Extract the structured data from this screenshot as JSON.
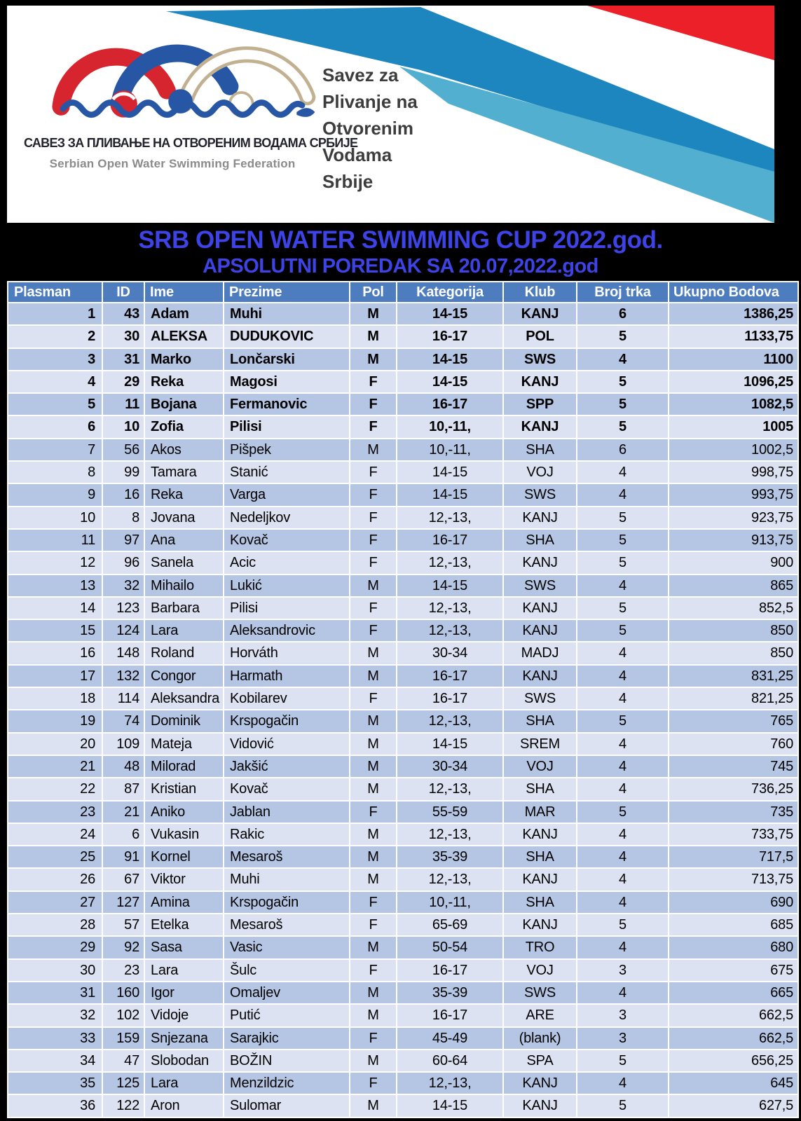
{
  "logo": {
    "cyrillic_name": "САВЕЗ ЗА ПЛИВАЊЕ НА ОТВОРЕНИМ ВОДАМА СРБИЈЕ",
    "english_name": "Serbian Open Water Swimming Federation",
    "side_lines": [
      "Savez za",
      "Plivanje na",
      "Otvorenim",
      "Vodama",
      "Srbije"
    ],
    "colors": {
      "arm_red": "#D6252E",
      "arm_blue": "#2757A4",
      "arm_tan": "#C2B190",
      "wave_blue": "#2757A4",
      "stripe_red": "#EC2028",
      "stripe_blue": "#1E86BF",
      "stripe_light_blue": "#53AFCF"
    }
  },
  "titles": {
    "main": "SRB OPEN WATER SWIMMING CUP 2022.god.",
    "sub": "APSOLUTNI POREDAK SA 20.07,2022.god",
    "color": "#3D43E5"
  },
  "table": {
    "columns": [
      "Plasman",
      "ID",
      "Ime",
      "Prezime",
      "Pol",
      "Kategorija",
      "Klub",
      "Broj trka",
      "Ukupno Bodova"
    ],
    "bold_rows": 6,
    "colors": {
      "header_bg": "#4D7CBF",
      "header_text": "#FFFFFF",
      "band_dark": "#B5C6E4",
      "band_light": "#DCE2F2",
      "grid": "#FFFFFF"
    },
    "rows": [
      [
        "1",
        "43",
        "Adam",
        "Muhi",
        "M",
        "14-15",
        "KANJ",
        "6",
        "1386,25"
      ],
      [
        "2",
        "30",
        "ALEKSA",
        "DUDUKOVIC",
        "M",
        "16-17",
        "POL",
        "5",
        "1133,75"
      ],
      [
        "3",
        "31",
        "Marko",
        "Lončarski",
        "M",
        "14-15",
        "SWS",
        "4",
        "1100"
      ],
      [
        "4",
        "29",
        "Reka",
        "Magosi",
        "F",
        "14-15",
        "KANJ",
        "5",
        "1096,25"
      ],
      [
        "5",
        "11",
        "Bojana",
        "Fermanovic",
        "F",
        "16-17",
        "SPP",
        "5",
        "1082,5"
      ],
      [
        "6",
        "10",
        "Zofia",
        "Pilisi",
        "F",
        "10,-11,",
        "KANJ",
        "5",
        "1005"
      ],
      [
        "7",
        "56",
        "Akos",
        "Pišpek",
        "M",
        "10,-11,",
        "SHA",
        "6",
        "1002,5"
      ],
      [
        "8",
        "99",
        "Tamara",
        "Stanić",
        "F",
        "14-15",
        "VOJ",
        "4",
        "998,75"
      ],
      [
        "9",
        "16",
        "Reka",
        "Varga",
        "F",
        "14-15",
        "SWS",
        "4",
        "993,75"
      ],
      [
        "10",
        "8",
        "Jovana",
        "Nedeljkov",
        "F",
        "12,-13,",
        "KANJ",
        "5",
        "923,75"
      ],
      [
        "11",
        "97",
        "Ana",
        "Kovač",
        "F",
        "16-17",
        "SHA",
        "5",
        "913,75"
      ],
      [
        "12",
        "96",
        "Sanela",
        "Acic",
        "F",
        "12,-13,",
        "KANJ",
        "5",
        "900"
      ],
      [
        "13",
        "32",
        "Mihailo",
        "Lukić",
        "M",
        "14-15",
        "SWS",
        "4",
        "865"
      ],
      [
        "14",
        "123",
        "Barbara",
        "Pilisi",
        "F",
        "12,-13,",
        "KANJ",
        "5",
        "852,5"
      ],
      [
        "15",
        "124",
        "Lara",
        "Aleksandrovic",
        "F",
        "12,-13,",
        "KANJ",
        "5",
        "850"
      ],
      [
        "16",
        "148",
        "Roland",
        "Horváth",
        "M",
        "30-34",
        "MADJ",
        "4",
        "850"
      ],
      [
        "17",
        "132",
        "Congor",
        "Harmath",
        "M",
        "16-17",
        "KANJ",
        "4",
        "831,25"
      ],
      [
        "18",
        "114",
        "Aleksandra",
        "Kobilarev",
        "F",
        "16-17",
        "SWS",
        "4",
        "821,25"
      ],
      [
        "19",
        "74",
        "Dominik",
        "Krspogačin",
        "M",
        "12,-13,",
        "SHA",
        "5",
        "765"
      ],
      [
        "20",
        "109",
        "Mateja",
        "Vidović",
        "M",
        "14-15",
        "SREM",
        "4",
        "760"
      ],
      [
        "21",
        "48",
        "Milorad",
        "Jakšić",
        "M",
        "30-34",
        "VOJ",
        "4",
        "745"
      ],
      [
        "22",
        "87",
        "Kristian",
        "Kovač",
        "M",
        "12,-13,",
        "SHA",
        "4",
        "736,25"
      ],
      [
        "23",
        "21",
        "Aniko",
        "Jablan",
        "F",
        "55-59",
        "MAR",
        "5",
        "735"
      ],
      [
        "24",
        "6",
        "Vukasin",
        "Rakic",
        "M",
        "12,-13,",
        "KANJ",
        "4",
        "733,75"
      ],
      [
        "25",
        "91",
        "Kornel",
        "Mesaroš",
        "M",
        "35-39",
        "SHA",
        "4",
        "717,5"
      ],
      [
        "26",
        "67",
        "Viktor",
        "Muhi",
        "M",
        "12,-13,",
        "KANJ",
        "4",
        "713,75"
      ],
      [
        "27",
        "127",
        "Amina",
        "Krspogačin",
        "F",
        "10,-11,",
        "SHA",
        "4",
        "690"
      ],
      [
        "28",
        "57",
        "Etelka",
        "Mesaroš",
        "F",
        "65-69",
        "KANJ",
        "5",
        "685"
      ],
      [
        "29",
        "92",
        "Sasa",
        "Vasic",
        "M",
        "50-54",
        "TRO",
        "4",
        "680"
      ],
      [
        "30",
        "23",
        "Lara",
        "Šulc",
        "F",
        "16-17",
        "VOJ",
        "3",
        "675"
      ],
      [
        "31",
        "160",
        "Igor",
        "Omaljev",
        "M",
        "35-39",
        "SWS",
        "4",
        "665"
      ],
      [
        "32",
        "102",
        "Vidoje",
        "Putić",
        "M",
        "16-17",
        "ARE",
        "3",
        "662,5"
      ],
      [
        "33",
        "159",
        "Snjezana",
        "Sarajkic",
        "F",
        "45-49",
        "(blank)",
        "3",
        "662,5"
      ],
      [
        "34",
        "47",
        "Slobodan",
        "BOŽIN",
        "M",
        "60-64",
        "SPA",
        "5",
        "656,25"
      ],
      [
        "35",
        "125",
        "Lara",
        "Menzildzic",
        "F",
        "12,-13,",
        "KANJ",
        "4",
        "645"
      ],
      [
        "36",
        "122",
        "Aron",
        "Sulomar",
        "M",
        "14-15",
        "KANJ",
        "5",
        "627,5"
      ]
    ]
  }
}
